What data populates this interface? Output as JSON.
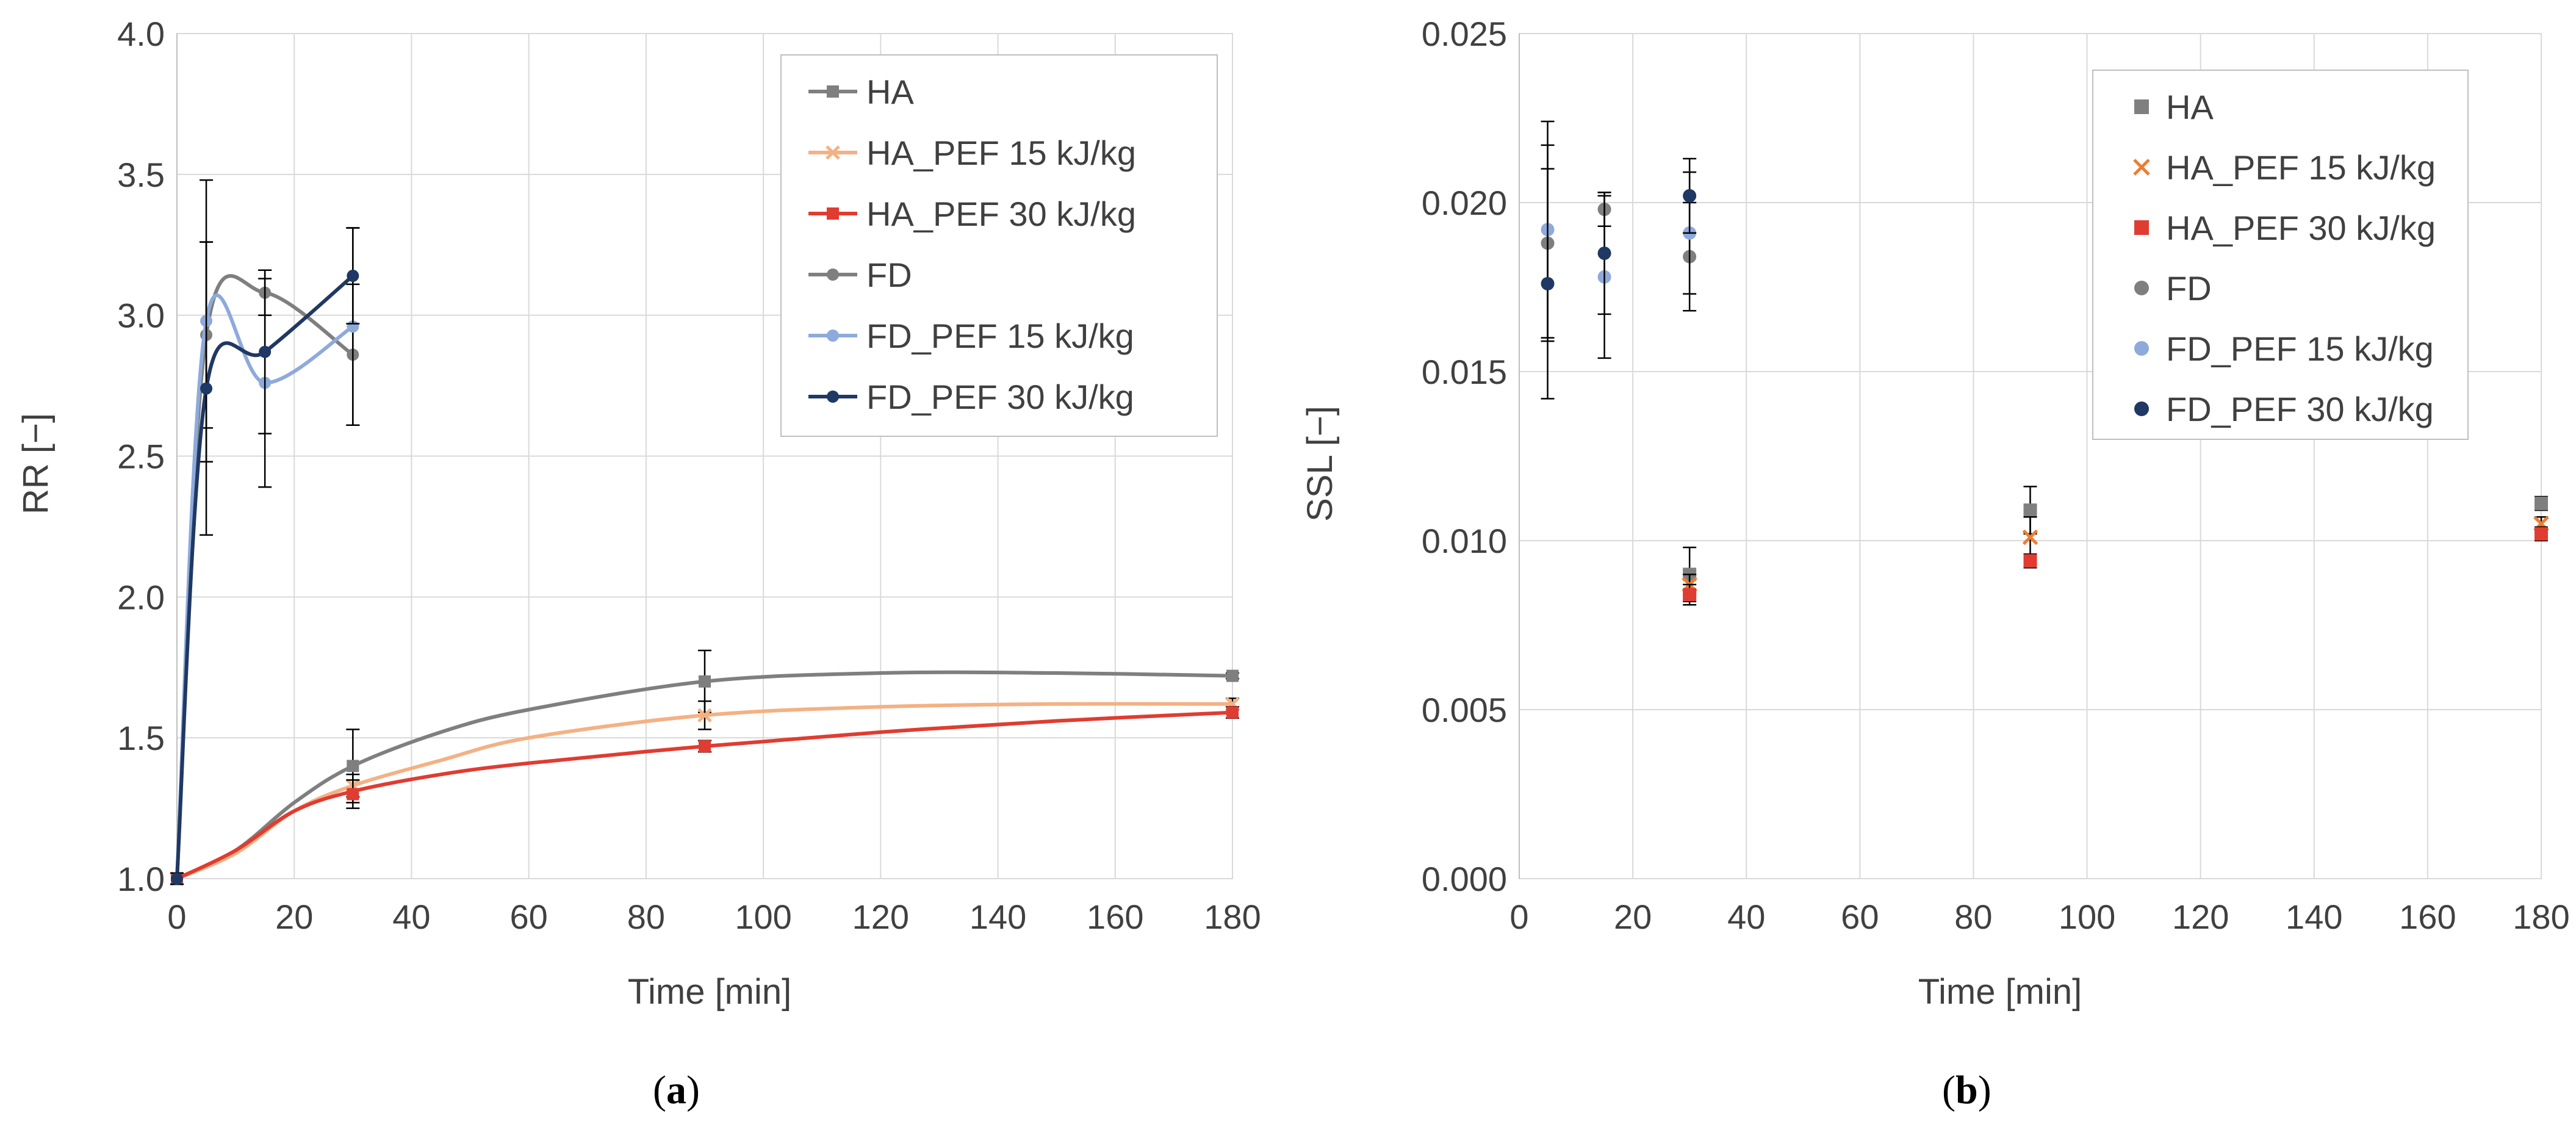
{
  "chart_data": [
    {
      "type": "line",
      "panel_label": "a",
      "xlabel": "Time [min]",
      "ylabel": "RR [−]",
      "xlim": [
        0,
        180
      ],
      "ylim": [
        1.0,
        4.0
      ],
      "xticks": [
        "0",
        "20",
        "40",
        "60",
        "80",
        "100",
        "120",
        "140",
        "160",
        "180"
      ],
      "yticks": [
        "1.0",
        "1.5",
        "2.0",
        "2.5",
        "3.0",
        "3.5",
        "4.0"
      ],
      "grid": true,
      "legend_position": "top-right",
      "series": [
        {
          "name": "HA",
          "color": "#7f7f7f",
          "marker": "square",
          "x": [
            0,
            30,
            90,
            180
          ],
          "y": [
            1.0,
            1.4,
            1.7,
            1.72
          ],
          "err": [
            0.02,
            0.13,
            0.11,
            0.01
          ],
          "curve_x": [
            0,
            10,
            20,
            30,
            45,
            60,
            90,
            120,
            150,
            180
          ],
          "curve_y": [
            1.0,
            1.1,
            1.27,
            1.4,
            1.52,
            1.6,
            1.7,
            1.73,
            1.73,
            1.72
          ]
        },
        {
          "name": "HA_PEF 15 kJ/kg",
          "color": "#f4b183",
          "marker": "x",
          "x": [
            0,
            30,
            90,
            180
          ],
          "y": [
            1.0,
            1.33,
            1.58,
            1.62
          ],
          "err": [
            0.02,
            0.04,
            0.05,
            0.02
          ],
          "curve_x": [
            0,
            10,
            20,
            30,
            45,
            60,
            90,
            120,
            150,
            180
          ],
          "curve_y": [
            1.0,
            1.09,
            1.24,
            1.33,
            1.42,
            1.5,
            1.58,
            1.61,
            1.62,
            1.62
          ]
        },
        {
          "name": "HA_PEF 30 kJ/kg",
          "color": "#e03c31",
          "marker": "square",
          "x": [
            0,
            30,
            90,
            180
          ],
          "y": [
            1.0,
            1.3,
            1.47,
            1.59
          ],
          "err": [
            0.02,
            0.05,
            0.02,
            0.02
          ],
          "curve_x": [
            0,
            10,
            20,
            30,
            45,
            60,
            90,
            120,
            150,
            180
          ],
          "curve_y": [
            1.0,
            1.1,
            1.24,
            1.31,
            1.37,
            1.41,
            1.47,
            1.52,
            1.56,
            1.59
          ]
        },
        {
          "name": "FD",
          "color": "#7f7f7f",
          "marker": "circle",
          "x": [
            0,
            5,
            15,
            30
          ],
          "y": [
            1.0,
            2.93,
            3.08,
            2.86
          ],
          "err": [
            0.02,
            0.33,
            0.08,
            0.25
          ]
        },
        {
          "name": "FD_PEF 15 kJ/kg",
          "color": "#8eaadb",
          "marker": "circle",
          "x": [
            0,
            5,
            15,
            30
          ],
          "y": [
            1.0,
            2.98,
            2.76,
            2.96
          ],
          "err": [
            0.02,
            0.5,
            0.37,
            0.35
          ]
        },
        {
          "name": "FD_PEF 30 kJ/kg",
          "color": "#1f3864",
          "marker": "circle",
          "x": [
            0,
            5,
            15,
            30
          ],
          "y": [
            1.0,
            2.74,
            2.87,
            3.14
          ],
          "err": [
            0.02,
            0.52,
            0.29,
            0.17
          ]
        }
      ]
    },
    {
      "type": "scatter",
      "panel_label": "b",
      "xlabel": "Time [min]",
      "ylabel": "SSL [−]",
      "xlim": [
        0,
        180
      ],
      "ylim": [
        0.0,
        0.025
      ],
      "xticks": [
        "0",
        "20",
        "40",
        "60",
        "80",
        "100",
        "120",
        "140",
        "160",
        "180"
      ],
      "yticks": [
        "0.000",
        "0.005",
        "0.010",
        "0.015",
        "0.020",
        "0.025"
      ],
      "grid": true,
      "legend_position": "top-right",
      "series": [
        {
          "name": "HA",
          "color": "#7f7f7f",
          "marker": "square",
          "x": [
            30,
            90,
            180
          ],
          "y": [
            0.009,
            0.0109,
            0.0111
          ],
          "err": [
            0.0008,
            0.0007,
            0.0002
          ]
        },
        {
          "name": "HA_PEF 15 kJ/kg",
          "color": "#ed7d31",
          "marker": "x",
          "x": [
            30,
            90,
            180
          ],
          "y": [
            0.0087,
            0.0101,
            0.0105
          ],
          "err": [
            0.0003,
            0.0006,
            0.0002
          ]
        },
        {
          "name": "HA_PEF 30 kJ/kg",
          "color": "#e03c31",
          "marker": "square",
          "x": [
            30,
            90,
            180
          ],
          "y": [
            0.0084,
            0.0094,
            0.0102
          ],
          "err": [
            0.0003,
            0.0002,
            0.0002
          ]
        },
        {
          "name": "FD",
          "color": "#7f7f7f",
          "marker": "circle",
          "x": [
            5,
            15,
            30
          ],
          "y": [
            0.0188,
            0.0198,
            0.0184
          ],
          "err": [
            0.0029,
            0.0005,
            0.0016
          ]
        },
        {
          "name": "FD_PEF 15 kJ/kg",
          "color": "#8eaadb",
          "marker": "circle",
          "x": [
            5,
            15,
            30
          ],
          "y": [
            0.0192,
            0.0178,
            0.0191
          ],
          "err": [
            0.0032,
            0.0024,
            0.0018
          ]
        },
        {
          "name": "FD_PEF 30 kJ/kg",
          "color": "#1f3864",
          "marker": "circle",
          "x": [
            5,
            15,
            30
          ],
          "y": [
            0.0176,
            0.0185,
            0.0202
          ],
          "err": [
            0.0034,
            0.0018,
            0.0011
          ]
        }
      ]
    }
  ]
}
